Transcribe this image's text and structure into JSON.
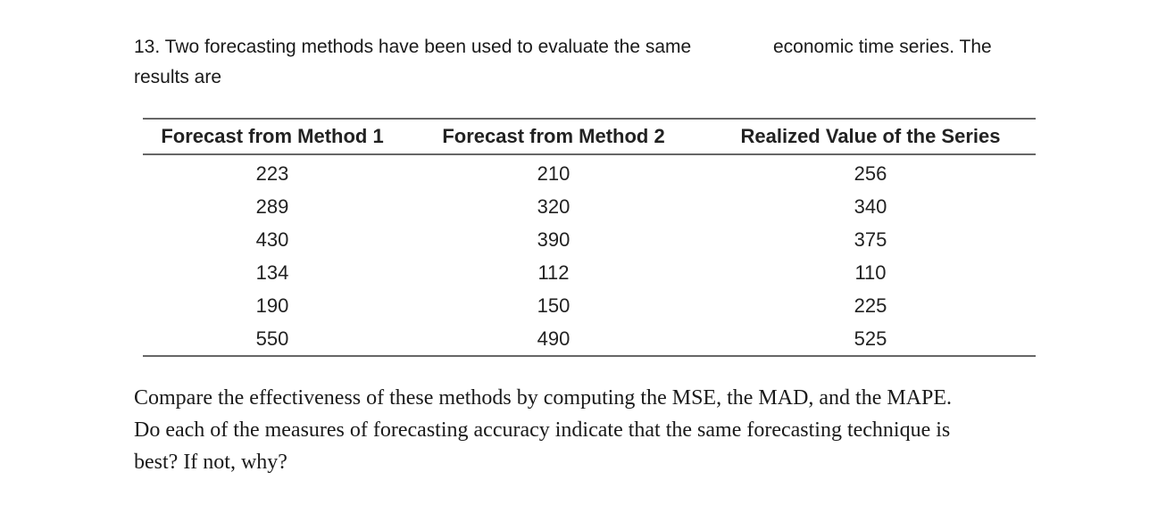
{
  "question": {
    "number_and_intro_part1": "13. Two forecasting methods have been used to evaluate the same",
    "intro_part2": "economic time series. The",
    "intro_part3": "results are"
  },
  "table": {
    "headers": [
      "Forecast from Method 1",
      "Forecast from Method 2",
      "Realized Value of the Series"
    ],
    "rows": [
      [
        "223",
        "210",
        "256"
      ],
      [
        "289",
        "320",
        "340"
      ],
      [
        "430",
        "390",
        "375"
      ],
      [
        "134",
        "112",
        "110"
      ],
      [
        "190",
        "150",
        "225"
      ],
      [
        "550",
        "490",
        "525"
      ]
    ]
  },
  "follow_up": {
    "line1": "Compare the effectiveness of these methods by computing the MSE, the MAD, and the MAPE.",
    "line2": "Do each of the measures of forecasting accuracy indicate that the same forecasting technique is",
    "line3": "best? If not, why?"
  }
}
